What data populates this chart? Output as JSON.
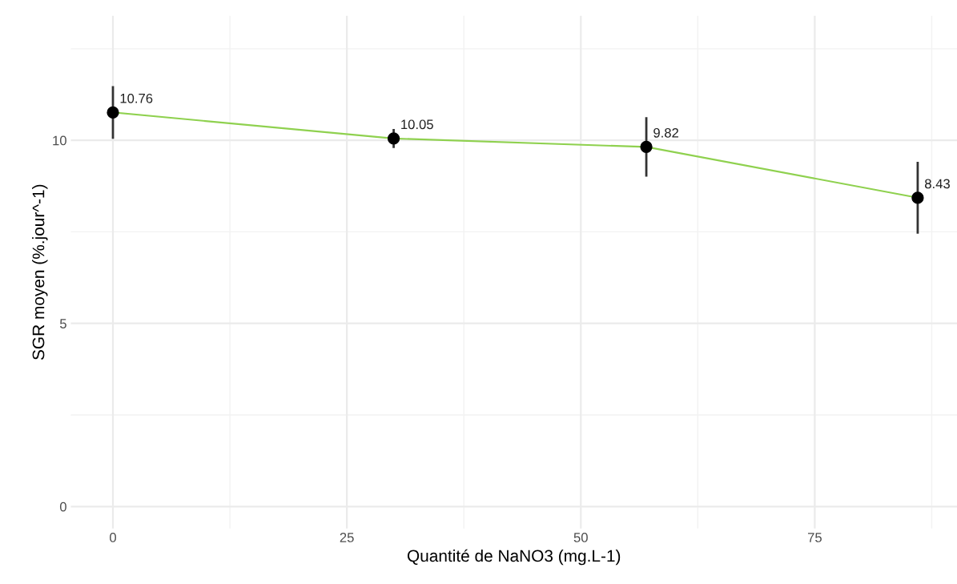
{
  "chart_data": {
    "type": "line",
    "xlabel": "Quantité de NaNO3 (mg.L-1)",
    "ylabel": "SGR moyen (%.jour^-1)",
    "x": [
      0,
      30,
      57,
      86
    ],
    "series": [
      {
        "color": "#8fd14f",
        "values": [
          10.76,
          10.05,
          9.82,
          8.43
        ],
        "errors": [
          0.72,
          0.26,
          0.81,
          0.98
        ]
      }
    ],
    "data_labels": true,
    "marker": "circle",
    "xlim": [
      -4.5,
      90.2
    ],
    "xticks": [
      0,
      25,
      50,
      75
    ],
    "ylim": [
      -0.6,
      13.4
    ],
    "yticks": [
      0,
      5,
      10
    ],
    "grid": true
  }
}
